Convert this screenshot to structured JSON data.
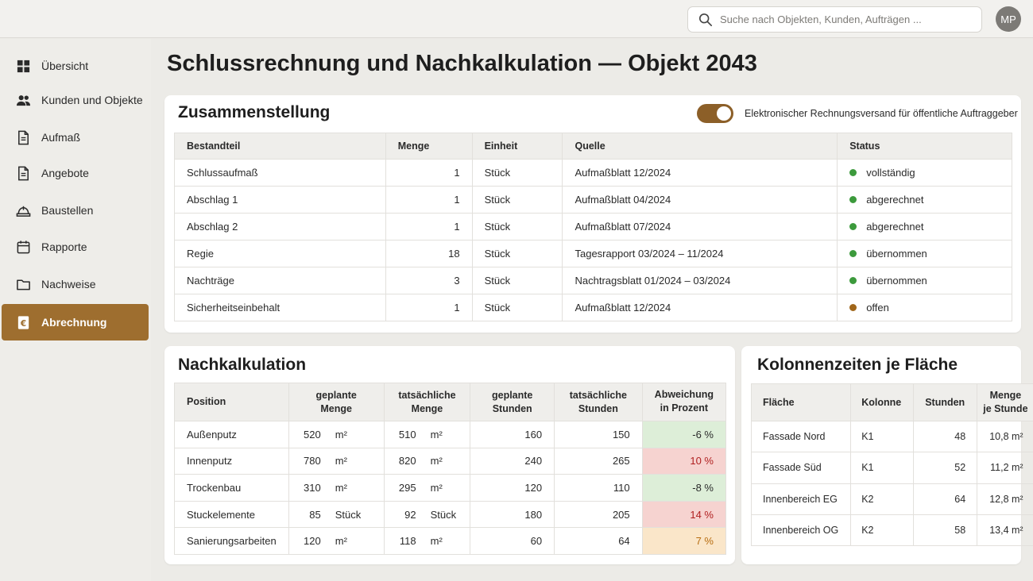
{
  "search": {
    "placeholder": "Suche nach Objekten, Kunden, Aufträgen ..."
  },
  "user": {
    "initials": "MP"
  },
  "sidebar": {
    "items": [
      {
        "label": "Übersicht",
        "icon": "grid-icon"
      },
      {
        "label": "Kunden und Objekte",
        "icon": "users-icon"
      },
      {
        "label": "Aufmaß",
        "icon": "document-icon"
      },
      {
        "label": "Angebote",
        "icon": "document-icon"
      },
      {
        "label": "Baustellen",
        "icon": "hardhat-icon"
      },
      {
        "label": "Rapporte",
        "icon": "calendar-icon"
      },
      {
        "label": "Nachweise",
        "icon": "folder-icon"
      },
      {
        "label": "Abrechnung",
        "icon": "euro-icon",
        "active": true
      }
    ]
  },
  "page": {
    "title": "Schlussrechnung und Nachkalkulation — Objekt 2043"
  },
  "summary": {
    "title": "Zusammenstellung",
    "toggle_label": "Elektronischer Rechnungsversand für öffentliche Auftraggeber",
    "toggle_on": true,
    "headers": [
      "Bestandteil",
      "Menge",
      "Einheit",
      "Quelle",
      "Status"
    ],
    "rows": [
      {
        "part": "Schlussaufmaß",
        "qty": "1",
        "unit": "Stück",
        "source": "Aufmaßblatt 12/2024",
        "status": "vollständig",
        "status_color": "#3c9a3c"
      },
      {
        "part": "Abschlag 1",
        "qty": "1",
        "unit": "Stück",
        "source": "Aufmaßblatt 04/2024",
        "status": "abgerechnet",
        "status_color": "#3c9a3c"
      },
      {
        "part": "Abschlag 2",
        "qty": "1",
        "unit": "Stück",
        "source": "Aufmaßblatt 07/2024",
        "status": "abgerechnet",
        "status_color": "#3c9a3c"
      },
      {
        "part": "Regie",
        "qty": "18",
        "unit": "Stück",
        "source": "Tagesrapport 03/2024 – 11/2024",
        "status": "übernommen",
        "status_color": "#3c9a3c"
      },
      {
        "part": "Nachträge",
        "qty": "3",
        "unit": "Stück",
        "source": "Nachtragsblatt 01/2024 – 03/2024",
        "status": "übernommen",
        "status_color": "#3c9a3c"
      },
      {
        "part": "Sicherheitseinbehalt",
        "qty": "1",
        "unit": "Stück",
        "source": "Aufmaßblatt 12/2024",
        "status": "offen",
        "status_color": "#a0661a"
      }
    ]
  },
  "calc": {
    "title": "Nachkalkulation",
    "headers": {
      "position": "Position",
      "planned_qty_1": "geplante",
      "planned_qty_2": "Menge",
      "actual_qty_1": "tatsächliche",
      "actual_qty_2": "Menge",
      "planned_hours_1": "geplante",
      "planned_hours_2": "Stunden",
      "actual_hours_1": "tatsächliche",
      "actual_hours_2": "Stunden",
      "deviation_1": "Abweichung",
      "deviation_2": "in Prozent"
    },
    "rows": [
      {
        "position": "Außenputz",
        "pq": "520",
        "pu": "m²",
        "aq": "510",
        "au": "m²",
        "ph": "160",
        "ah": "150",
        "dev": "-6 %",
        "dev_class": "neg"
      },
      {
        "position": "Innenputz",
        "pq": "780",
        "pu": "m²",
        "aq": "820",
        "au": "m²",
        "ph": "240",
        "ah": "265",
        "dev": "10 %",
        "dev_class": "pos"
      },
      {
        "position": "Trockenbau",
        "pq": "310",
        "pu": "m²",
        "aq": "295",
        "au": "m²",
        "ph": "120",
        "ah": "110",
        "dev": "-8 %",
        "dev_class": "neg"
      },
      {
        "position": "Stuckelemente",
        "pq": "85",
        "pu": "Stück",
        "aq": "92",
        "au": "Stück",
        "ph": "180",
        "ah": "205",
        "dev": "14 %",
        "dev_class": "pos"
      },
      {
        "position": "Sanierungsarbeiten",
        "pq": "120",
        "pu": "m²",
        "aq": "118",
        "au": "m²",
        "ph": "60",
        "ah": "64",
        "dev": "7 %",
        "dev_class": "warn"
      }
    ]
  },
  "crew": {
    "title": "Kolonnenzeiten je Fläche",
    "headers": {
      "area": "Fläche",
      "crew": "Kolonne",
      "hours": "Stunden",
      "rate_1": "Menge",
      "rate_2": "je Stunde"
    },
    "rows": [
      {
        "area": "Fassade Nord",
        "crew": "K1",
        "hours": "48",
        "rate": "10,8 m²"
      },
      {
        "area": "Fassade Süd",
        "crew": "K1",
        "hours": "52",
        "rate": "11,2 m²"
      },
      {
        "area": "Innenbereich EG",
        "crew": "K2",
        "hours": "64",
        "rate": "12,8 m²"
      },
      {
        "area": "Innenbereich OG",
        "crew": "K2",
        "hours": "58",
        "rate": "13,4 m²"
      }
    ]
  }
}
